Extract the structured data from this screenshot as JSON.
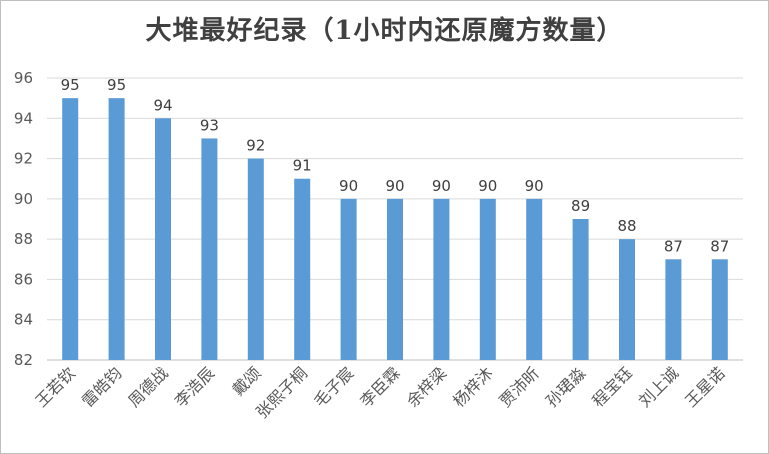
{
  "chart_data": {
    "type": "bar",
    "title": "大堆最好纪录（1小时内还原魔方数量）",
    "xlabel": "",
    "ylabel": "",
    "ylim": [
      82,
      96
    ],
    "yticks": [
      82,
      84,
      86,
      88,
      90,
      92,
      94,
      96
    ],
    "grid": true,
    "legend": "none",
    "bar_color": "#5b9bd5",
    "categories": [
      "王若钦",
      "雷皓钧",
      "周德战",
      "李浩辰",
      "戴颂",
      "张熙子桐",
      "毛子宸",
      "李臣霖",
      "余梓梁",
      "杨梓沐",
      "贾沛昕",
      "孙珺淼",
      "程宝钰",
      "刘上诚",
      "王星诺"
    ],
    "values": [
      95,
      95,
      94,
      93,
      92,
      91,
      90,
      90,
      90,
      90,
      90,
      89,
      88,
      87,
      87
    ]
  }
}
